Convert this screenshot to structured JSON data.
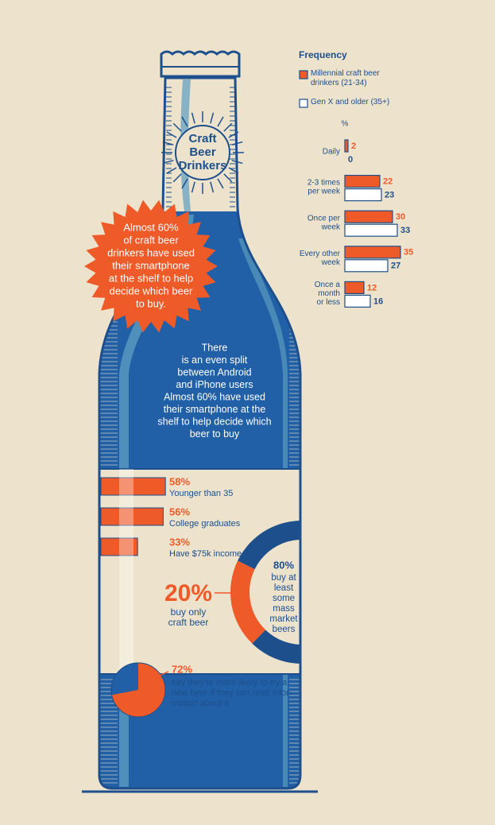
{
  "neck_label": [
    "Craft",
    "Beer",
    "Drinkers"
  ],
  "burst_text": [
    "Almost 60%",
    "of craft beer",
    "drinkers have used",
    "their smartphone",
    "at the shelf to help",
    "decide which beer",
    "to buy."
  ],
  "body_text": [
    "There",
    "is an even split",
    "between Android",
    "and iPhone users",
    "Almost 60% have used",
    "their smartphone at the",
    "shelf to help decide which",
    "beer to buy"
  ],
  "chart_data": [
    {
      "type": "hbar",
      "title": "Frequency",
      "unit": "%",
      "categories": [
        [
          "Daily"
        ],
        [
          "2-3 times",
          "per week"
        ],
        [
          "Once per",
          "week"
        ],
        [
          "Every other",
          "week"
        ],
        [
          "Once a",
          "month",
          "or less"
        ]
      ],
      "xlim": [
        0,
        35
      ],
      "series": [
        {
          "name": "Millennial craft beer drinkers (21-34)",
          "color": "#ee5a28",
          "values": [
            2,
            22,
            30,
            35,
            12
          ]
        },
        {
          "name": "Gen X and older (35+)",
          "color": "#ffffff",
          "values": [
            0,
            23,
            33,
            27,
            16
          ]
        }
      ]
    },
    {
      "type": "bar",
      "categories": [
        "Younger than 35",
        "College graduates",
        "Have $75k income"
      ],
      "values": [
        58,
        56,
        33
      ],
      "value_labels": [
        "58%",
        "56%",
        "33%"
      ],
      "xlim": [
        0,
        100
      ],
      "color": "#ee5a28"
    },
    {
      "type": "donut",
      "values": [
        20,
        80
      ],
      "value_labels": [
        "20%",
        "80%"
      ],
      "labels": [
        [
          "buy only",
          "craft beer"
        ],
        [
          "buy at",
          "least",
          "some",
          "mass",
          "market",
          "beers"
        ]
      ],
      "colors": [
        "#ee5a28",
        "#1d4f8c"
      ]
    },
    {
      "type": "pie",
      "values": [
        72
      ],
      "value_labels": [
        "72%"
      ],
      "label": [
        "say they're more likely to try a",
        "new beer if they can read infor-",
        "mation about it"
      ],
      "colors": [
        "#ee5a28",
        "#2160a6"
      ]
    }
  ]
}
